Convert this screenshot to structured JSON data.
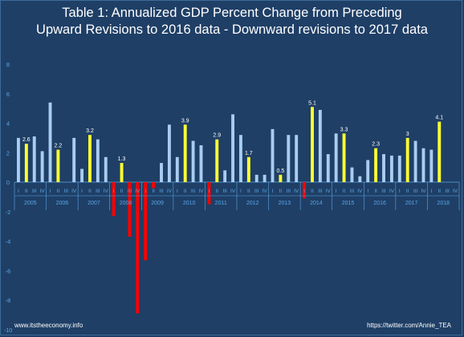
{
  "title_lines": [
    "Table 1: Annualized GDP Percent Change from Preceding",
    "Upward Revisions to 2016 data - Downward revisions to 2017 data"
  ],
  "footer": {
    "left": "www.itstheeconomy.info",
    "right": "https://twitter.com/Annie_TEA"
  },
  "colors": {
    "background": "#1f3f66",
    "bar_default": "#a9cdf0",
    "bar_q2": "#ffff33",
    "bar_negative": "#ff0000",
    "axis_label": "#5aa7e8"
  },
  "chart_data": {
    "type": "bar",
    "ylim": [
      -10,
      8
    ],
    "yticks": [
      -10,
      -8,
      -6,
      -4,
      -2,
      0,
      2,
      4,
      6,
      8
    ],
    "quarter_labels": [
      "I",
      "II",
      "III",
      "IV"
    ],
    "years": [
      "2005",
      "2006",
      "2007",
      "2008",
      "2009",
      "2010",
      "2011",
      "2012",
      "2013",
      "2014",
      "2015",
      "2016",
      "2017",
      "2018"
    ],
    "values": [
      3.0,
      2.6,
      3.1,
      2.1,
      5.4,
      2.2,
      0.0,
      3.0,
      0.9,
      3.2,
      2.9,
      1.7,
      -2.3,
      1.3,
      -3.7,
      -8.9,
      -5.3,
      -0.4,
      1.3,
      3.9,
      1.7,
      3.9,
      2.8,
      2.5,
      -1.5,
      2.9,
      0.8,
      4.6,
      3.2,
      1.7,
      0.5,
      0.5,
      3.6,
      0.5,
      3.2,
      3.2,
      -1.1,
      5.1,
      4.9,
      1.9,
      3.3,
      3.3,
      1.0,
      0.4,
      1.5,
      2.3,
      1.9,
      1.8,
      1.8,
      3.0,
      2.8,
      2.3,
      2.2,
      4.1,
      null,
      null
    ],
    "data_labels": [
      {
        "index": 1,
        "text": "2.6"
      },
      {
        "index": 5,
        "text": "2.2"
      },
      {
        "index": 9,
        "text": "3.2"
      },
      {
        "index": 13,
        "text": "1.3"
      },
      {
        "index": 21,
        "text": "3.9"
      },
      {
        "index": 25,
        "text": "2.9"
      },
      {
        "index": 29,
        "text": "1.7"
      },
      {
        "index": 33,
        "text": "0.5"
      },
      {
        "index": 37,
        "text": "5.1"
      },
      {
        "index": 41,
        "text": "3.3"
      },
      {
        "index": 45,
        "text": "2.3"
      },
      {
        "index": 49,
        "text": "3"
      },
      {
        "index": 53,
        "text": "4.1"
      }
    ],
    "xlabel": "",
    "ylabel": "",
    "grid": false,
    "legend": "none"
  }
}
